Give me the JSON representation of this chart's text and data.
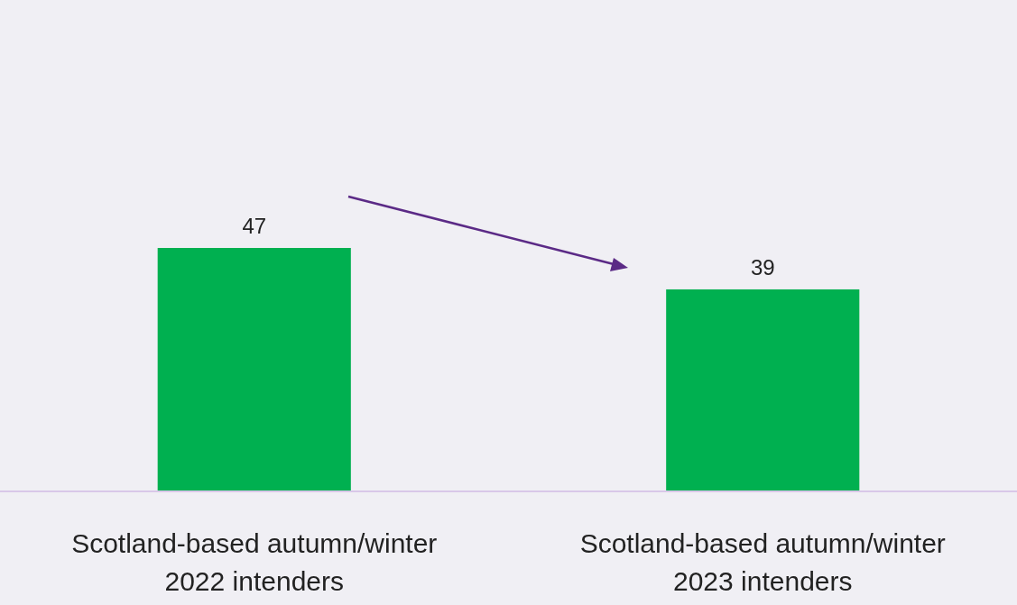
{
  "chart_data": {
    "type": "bar",
    "categories": [
      "Scotland-based autumn/winter 2022 intenders",
      "Scotland-based autumn/winter 2023 intenders"
    ],
    "values": [
      47,
      39
    ],
    "color": "#00b050",
    "data_labels": true,
    "tick_labels": "x"
  }
}
